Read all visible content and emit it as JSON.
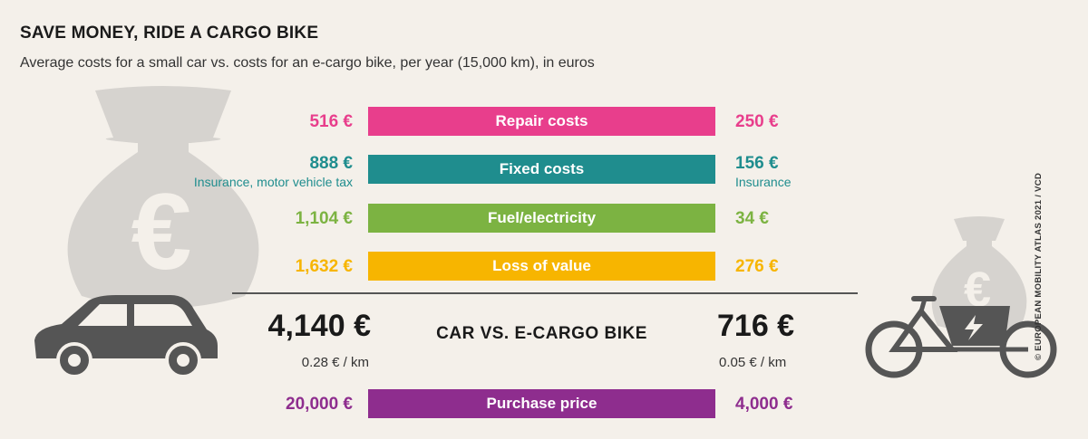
{
  "title": "SAVE MONEY, RIDE A CARGO BIKE",
  "subtitle": "Average costs for a small car vs. costs for an e-cargo bike, per year (15,000 km), in euros",
  "credit": "© EUROPEAN MOBILITY ATLAS 2021 / VCD",
  "chart_data": {
    "type": "table",
    "columns": [
      "Car",
      "E-cargo bike"
    ],
    "rows": [
      {
        "category": "Repair costs",
        "car": 516,
        "bike": 250,
        "car_label": "516 €",
        "bike_label": "250 €",
        "color": "#e83e8c"
      },
      {
        "category": "Fixed costs",
        "car": 888,
        "bike": 156,
        "car_label": "888 €",
        "bike_label": "156 €",
        "car_note": "Insurance, motor vehicle tax",
        "bike_note": "Insurance",
        "color": "#1f8d8e"
      },
      {
        "category": "Fuel/electricity",
        "car": 1104,
        "bike": 34,
        "car_label": "1,104 €",
        "bike_label": "34 €",
        "color": "#7cb342"
      },
      {
        "category": "Loss of value",
        "car": 1632,
        "bike": 276,
        "car_label": "1,632 €",
        "bike_label": "276 €",
        "color": "#f7b500"
      }
    ],
    "totals": {
      "label": "CAR VS. E-CARGO BIKE",
      "car": 4140,
      "bike": 716,
      "car_label": "4,140 €",
      "bike_label": "716 €",
      "car_per_km": "0.28 € / km",
      "bike_per_km": "0.05 € / km"
    },
    "purchase": {
      "category": "Purchase price",
      "car": 20000,
      "bike": 4000,
      "car_label": "20,000 €",
      "bike_label": "4,000 €",
      "color": "#8e2d8e"
    }
  },
  "icons": {
    "money_bag": "euro-money-bag-icon",
    "car": "car-icon",
    "bike": "e-cargo-bike-icon",
    "euro_symbol": "€",
    "bolt_symbol": "⚡"
  },
  "colors": {
    "background": "#f4f0ea",
    "icon_gray": "#cfccc8",
    "icon_dark": "#555555"
  }
}
